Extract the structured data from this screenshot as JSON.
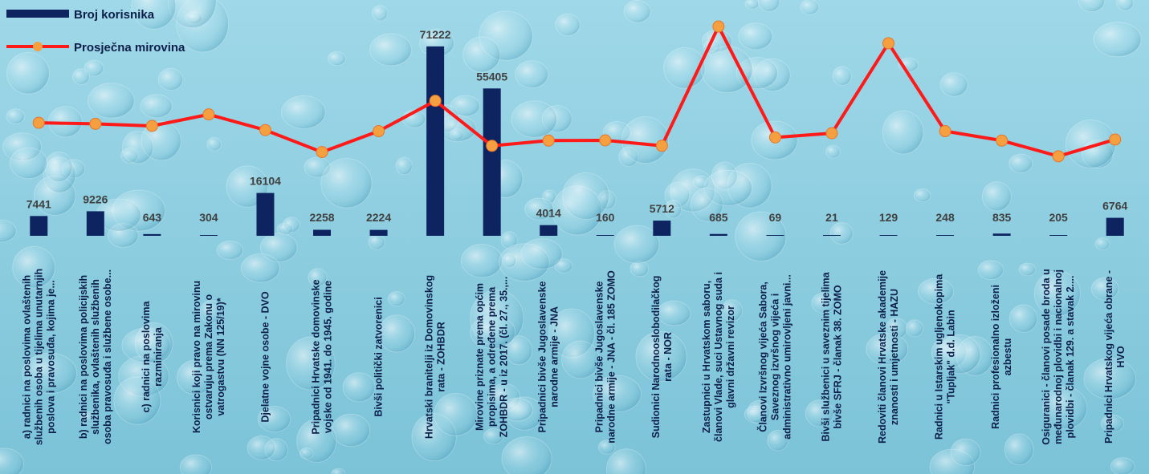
{
  "chart_data": {
    "type": "bar+line",
    "legend": [
      {
        "name": "Broj korisnika",
        "kind": "bar",
        "color": "#0e2460"
      },
      {
        "name": "Prosječna mirovina",
        "kind": "line",
        "color": "#ff1a1a",
        "marker_color": "#f4a040"
      }
    ],
    "categories": [
      [
        "a) radnici na poslovima ovlaštenih",
        "službenih osoba u tijelima unutarnjih",
        "poslova i pravosuđa, kojima je..."
      ],
      [
        "b) radnici na  poslovima policijskih",
        "službenika, ovlaštenih službenih",
        "osoba pravosuđa i službene osobe..."
      ],
      [
        "c) radnici na poslovima",
        "razminiranja"
      ],
      [
        "Korisnici koji pravo na mirovinu",
        "ostvaruju prema Zakonu o",
        "vatrogastvu (NN 125/19)*"
      ],
      [
        "Djelatne vojne osobe - DVO"
      ],
      [
        "Pripadnici Hrvatske domovinske",
        "vojske od 1941. do 1945. godine"
      ],
      [
        "Bivši politički zatvorenici"
      ],
      [
        "Hrvatski branitelji iz Domovinskog",
        "rata - ZOHBDR"
      ],
      [
        "Mirovine priznate prema općim",
        "propisima, a određene prema",
        "ZOHBDR - u iz 2017. (čl. 27., 35.,..."
      ],
      [
        "Pripadnici bivše Jugoslavenske",
        "narodne armije - JNA"
      ],
      [
        "Pripadnici bivše Jugoslavenske",
        "narodne armije - JNA - čl. 185 ZOMO"
      ],
      [
        "Sudionici Narodnooslobodilačkog",
        "rata - NOR"
      ],
      [
        "Zastupnici u Hrvatskom saboru,",
        "članovi Vlade, suci Ustavnog suda i",
        "glavni državni revizor"
      ],
      [
        "Članovi Izvršnog vijeća Sabora,",
        "Saveznog izvršnog vijeća i",
        "administrativno umirovljeni javni..."
      ],
      [
        "Bivši službenici u saveznim tijelima",
        "bivše SFRJ - članak 38. ZOMO"
      ],
      [
        "Redoviti članovi Hrvatske akademije",
        "znanosti i umjetnosti - HAZU"
      ],
      [
        "Radnici u Istarskim ugljenokopima",
        "\"Tupljak\" d.d. Labin"
      ],
      [
        "Radnici profesionalno izloženi",
        "azbestu"
      ],
      [
        "Osiguranici - članovi posade broda u",
        "međunarodnoj plovidbi i nacionalnoj",
        "plovidbi - članak 129. a stavak 2...."
      ],
      [
        "Pripadnici Hrvatskog vijeća obrane -",
        "HVO"
      ]
    ],
    "series": [
      {
        "name": "Broj korisnika",
        "type": "bar",
        "values": [
          7441,
          9226,
          643,
          304,
          16104,
          2258,
          2224,
          71222,
          55405,
          4014,
          160,
          5712,
          685,
          69,
          21,
          129,
          248,
          835,
          205,
          6764
        ]
      },
      {
        "name": "Prosječna mirovina",
        "type": "line",
        "axis": "secondary",
        "values": [
          5400,
          5350,
          5250,
          5800,
          5050,
          4000,
          5000,
          6450,
          4300,
          4550,
          4560,
          4300,
          10000,
          4700,
          4900,
          9200,
          5000,
          4550,
          3800,
          4600
        ]
      }
    ],
    "data_labels": [
      "7441",
      "9226",
      "643",
      "304",
      "16104",
      "2258",
      "2224",
      "71222",
      "55405",
      "4014",
      "160",
      "5712",
      "685",
      "69",
      "21",
      "129",
      "248",
      "835",
      "205",
      "6764"
    ],
    "ylim_bars": [
      0,
      76000
    ],
    "ylim_line": [
      0,
      10500
    ],
    "grid": false,
    "legend_position": "top-left"
  }
}
